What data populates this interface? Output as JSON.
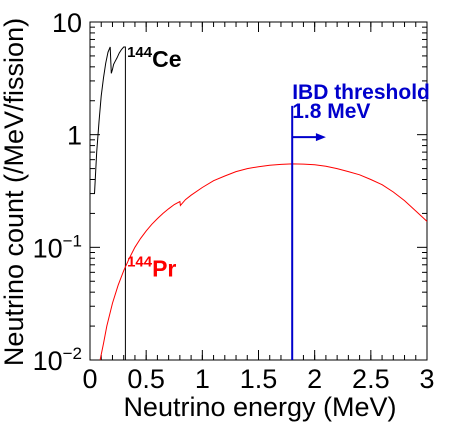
{
  "chart_data": {
    "type": "line",
    "title": "",
    "xlabel": "Neutrino energy (MeV)",
    "ylabel": "Neutrino count (/MeV/fission)",
    "xlim": [
      0,
      3
    ],
    "ylim": [
      0.01,
      10
    ],
    "y_scale": "log",
    "grid": false,
    "x_ticks": [
      "0",
      "0.5",
      "1",
      "1.5",
      "2",
      "2.5",
      "3"
    ],
    "y_ticks": [
      {
        "value": 0.01,
        "base": "10",
        "exp": "−2"
      },
      {
        "value": 0.1,
        "base": "10",
        "exp": "−1"
      },
      {
        "value": 1,
        "base": "1",
        "exp": ""
      },
      {
        "value": 10,
        "base": "10",
        "exp": ""
      }
    ],
    "series": [
      {
        "name": "144Ce",
        "color": "#000000",
        "x": [
          0.04,
          0.06,
          0.08,
          0.1,
          0.12,
          0.14,
          0.16,
          0.18,
          0.19,
          0.2,
          0.21,
          0.22,
          0.24,
          0.26,
          0.28,
          0.3,
          0.315,
          0.3155
        ],
        "y": [
          0.3,
          0.7,
          1.3,
          2.2,
          3.2,
          4.3,
          5.4,
          6.0,
          3.5,
          3.8,
          4.2,
          4.4,
          4.8,
          5.3,
          5.7,
          6.0,
          6.0,
          0.01
        ]
      },
      {
        "name": "144Pr",
        "color": "#ff0000",
        "x": [
          0.09,
          0.12,
          0.15,
          0.2,
          0.25,
          0.3,
          0.35,
          0.4,
          0.45,
          0.5,
          0.55,
          0.6,
          0.65,
          0.7,
          0.75,
          0.8,
          0.805,
          0.85,
          0.9,
          1.0,
          1.1,
          1.2,
          1.3,
          1.4,
          1.5,
          1.6,
          1.7,
          1.8,
          1.9,
          2.0,
          2.1,
          2.2,
          2.3,
          2.4,
          2.5,
          2.6,
          2.7,
          2.8,
          2.9,
          3.0
        ],
        "y": [
          0.01,
          0.014,
          0.02,
          0.032,
          0.046,
          0.062,
          0.08,
          0.1,
          0.12,
          0.14,
          0.16,
          0.18,
          0.2,
          0.22,
          0.24,
          0.255,
          0.235,
          0.265,
          0.29,
          0.34,
          0.39,
          0.43,
          0.47,
          0.5,
          0.52,
          0.535,
          0.545,
          0.55,
          0.548,
          0.54,
          0.525,
          0.5,
          0.47,
          0.44,
          0.4,
          0.36,
          0.31,
          0.26,
          0.21,
          0.17
        ]
      }
    ],
    "annotations": {
      "ce_label": {
        "sup": "144",
        "text": "Ce",
        "color": "#000000",
        "x": 0.33,
        "y": 4.0
      },
      "pr_label": {
        "sup": "144",
        "text": "Pr",
        "color": "#ff0000",
        "x": 0.33,
        "y": 0.055
      },
      "threshold": {
        "line1": "IBD threshold",
        "line2": "1.8 MeV",
        "color": "#0000cc",
        "x": 1.8,
        "y_top": 1.8,
        "arrow_to_x": 2.1,
        "arrow_y": 0.95
      }
    }
  }
}
